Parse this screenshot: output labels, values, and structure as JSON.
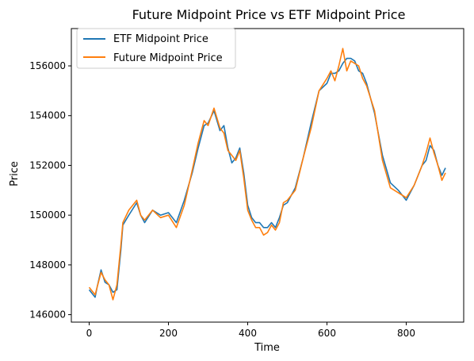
{
  "chart_data": {
    "type": "line",
    "title": "Future Midpoint Price vs ETF Midpoint Price",
    "xlabel": "Time",
    "ylabel": "Price",
    "xlim": [
      -45,
      945
    ],
    "ylim": [
      145700,
      157500
    ],
    "xticks": [
      0,
      200,
      400,
      600,
      800
    ],
    "yticks": [
      146000,
      148000,
      150000,
      152000,
      154000,
      156000
    ],
    "grid": false,
    "legend_position": "upper left",
    "x": [
      0,
      15,
      20,
      30,
      40,
      50,
      60,
      70,
      80,
      85,
      100,
      120,
      130,
      140,
      160,
      180,
      200,
      220,
      240,
      260,
      275,
      290,
      300,
      315,
      330,
      340,
      350,
      360,
      370,
      380,
      390,
      400,
      410,
      420,
      430,
      440,
      450,
      460,
      470,
      480,
      490,
      500,
      520,
      540,
      560,
      580,
      600,
      610,
      620,
      630,
      640,
      650,
      660,
      670,
      680,
      690,
      700,
      720,
      740,
      760,
      780,
      800,
      820,
      840,
      850,
      860,
      870,
      880,
      890,
      899
    ],
    "series": [
      {
        "name": "ETF Midpoint Price",
        "color": "#1f77b4",
        "values": [
          147000,
          146700,
          147100,
          147800,
          147300,
          147200,
          146900,
          147000,
          148600,
          149600,
          150000,
          150500,
          150000,
          149700,
          150200,
          150000,
          150100,
          149700,
          150600,
          151700,
          152700,
          153600,
          153700,
          154200,
          153400,
          153600,
          152700,
          152100,
          152300,
          152700,
          151700,
          150400,
          149900,
          149700,
          149700,
          149500,
          149500,
          149700,
          149500,
          149900,
          150400,
          150500,
          151100,
          152300,
          153700,
          155000,
          155300,
          155700,
          155700,
          155800,
          156100,
          156300,
          156300,
          156200,
          155800,
          155700,
          155300,
          154100,
          152400,
          151300,
          151000,
          150600,
          151200,
          152000,
          152200,
          152800,
          152600,
          152000,
          151600,
          151900
        ]
      },
      {
        "name": "Future Midpoint Price",
        "color": "#ff7f0e",
        "values": [
          147100,
          146800,
          147100,
          147700,
          147400,
          147200,
          146600,
          147200,
          148800,
          149700,
          150200,
          150600,
          150000,
          149800,
          150200,
          149900,
          150000,
          149500,
          150400,
          151800,
          152900,
          153800,
          153600,
          154300,
          153500,
          153300,
          152600,
          152400,
          152200,
          152600,
          151500,
          150200,
          149800,
          149500,
          149500,
          149200,
          149300,
          149600,
          149400,
          149700,
          150500,
          150600,
          151000,
          152300,
          153500,
          155000,
          155500,
          155800,
          155400,
          156000,
          156700,
          155800,
          156200,
          156100,
          156000,
          155500,
          155200,
          154200,
          152200,
          151100,
          150900,
          150700,
          151200,
          152000,
          152500,
          153100,
          152500,
          152000,
          151400,
          151700
        ]
      }
    ]
  }
}
